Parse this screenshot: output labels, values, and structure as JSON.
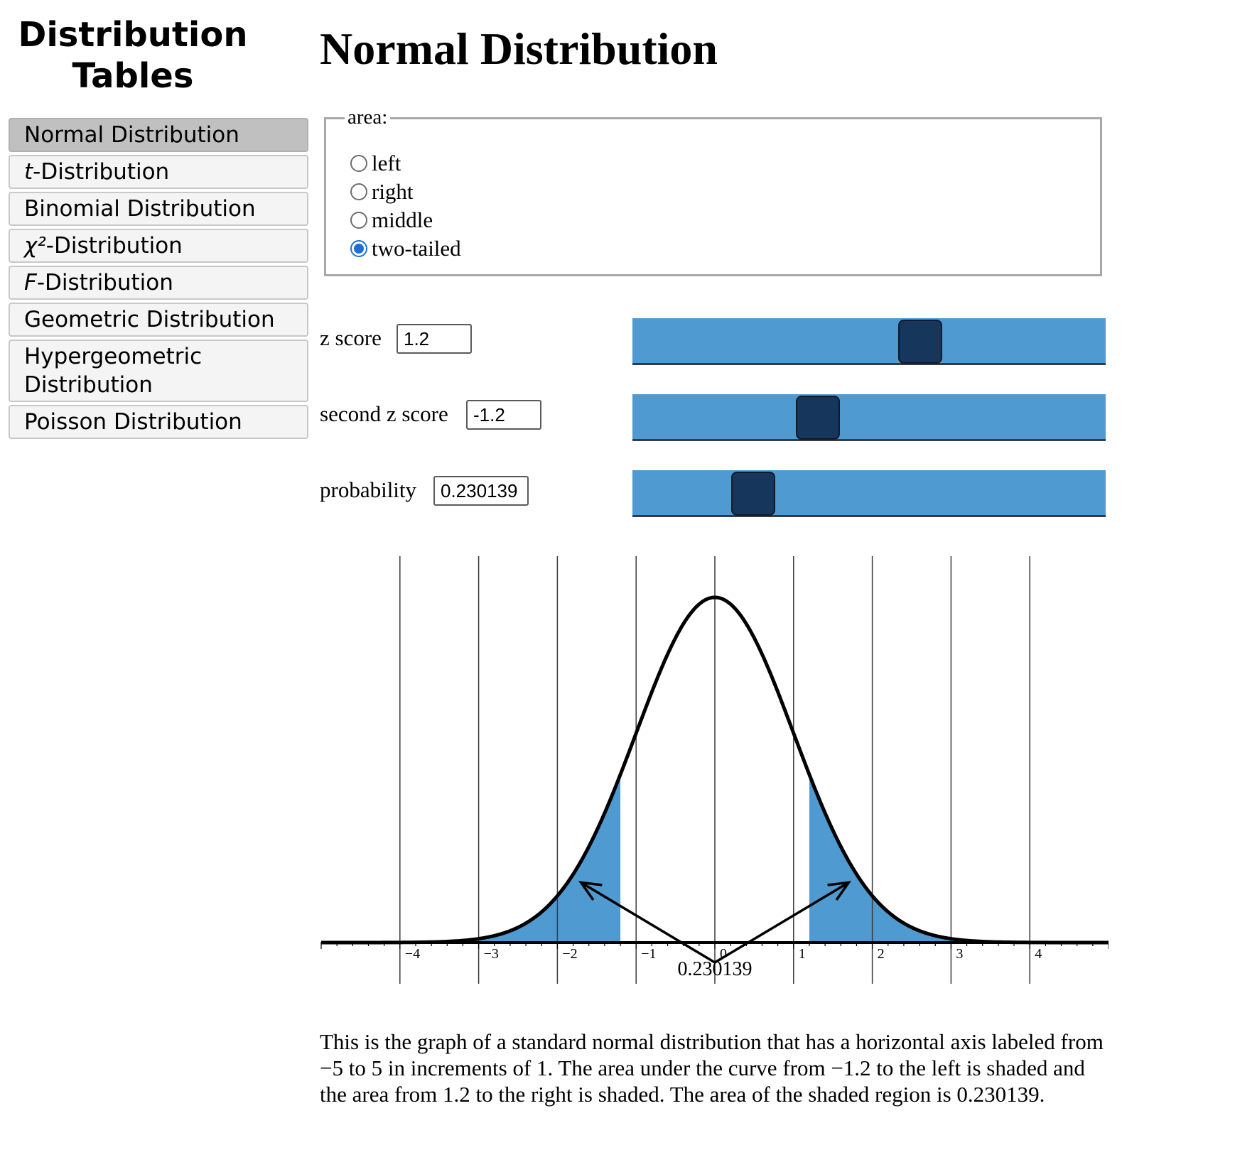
{
  "sidebar": {
    "title": "Distribution Tables",
    "items": [
      {
        "pre": "",
        "em": "",
        "label": "Normal Distribution",
        "active": true
      },
      {
        "pre": "",
        "em": "t",
        "label": "-Distribution",
        "active": false
      },
      {
        "pre": "",
        "em": "",
        "label": "Binomial Distribution",
        "active": false
      },
      {
        "pre": "χ²",
        "em": "",
        "label": "-Distribution",
        "active": false
      },
      {
        "pre": "",
        "em": "F",
        "label": "-Distribution",
        "active": false
      },
      {
        "pre": "",
        "em": "",
        "label": "Geometric Distribution",
        "active": false
      },
      {
        "pre": "",
        "em": "",
        "label": "Hypergeometric Distribution",
        "active": false
      },
      {
        "pre": "",
        "em": "",
        "label": "Poisson Distribution",
        "active": false
      }
    ]
  },
  "main": {
    "title": "Normal Distribution",
    "area": {
      "legend": "area:",
      "options": [
        "left",
        "right",
        "middle",
        "two-tailed"
      ],
      "selected": "two-tailed"
    },
    "z_score": {
      "label": "z score",
      "value": "1.2"
    },
    "second_z_score": {
      "label": "second z score",
      "value": "-1.2"
    },
    "probability": {
      "label": "probability",
      "value": "0.230139"
    },
    "description": "This is the graph of a standard normal distribution that has a horizontal axis labeled from −5 to 5 in increments of 1. The area under the curve from −1.2 to the left is shaded and the area from 1.2 to the right is shaded. The area of the shaded region is 0.230139."
  },
  "chart_data": {
    "type": "area",
    "x_range": [
      -5,
      5
    ],
    "x_ticks": [
      -4,
      -3,
      -2,
      -1,
      0,
      1,
      2,
      3,
      4
    ],
    "x_tick_labels": [
      "−4",
      "−3",
      "−2",
      "−1",
      "0",
      "1",
      "2",
      "3",
      "4"
    ],
    "shaded_regions": [
      [
        -5,
        -1.2
      ],
      [
        1.2,
        5
      ]
    ],
    "area_label": "0.230139",
    "colors": {
      "shade": "#4f9bd1",
      "curve": "#000000",
      "grid": "#3a3a3a"
    }
  },
  "slider_scale": {
    "z_range": [
      -5,
      5
    ],
    "probability_range": [
      0,
      1
    ]
  },
  "colors": {
    "slider_track": "#4f9bd1",
    "slider_thumb": "#17365c",
    "radio_selected": "#1f6fd6"
  }
}
